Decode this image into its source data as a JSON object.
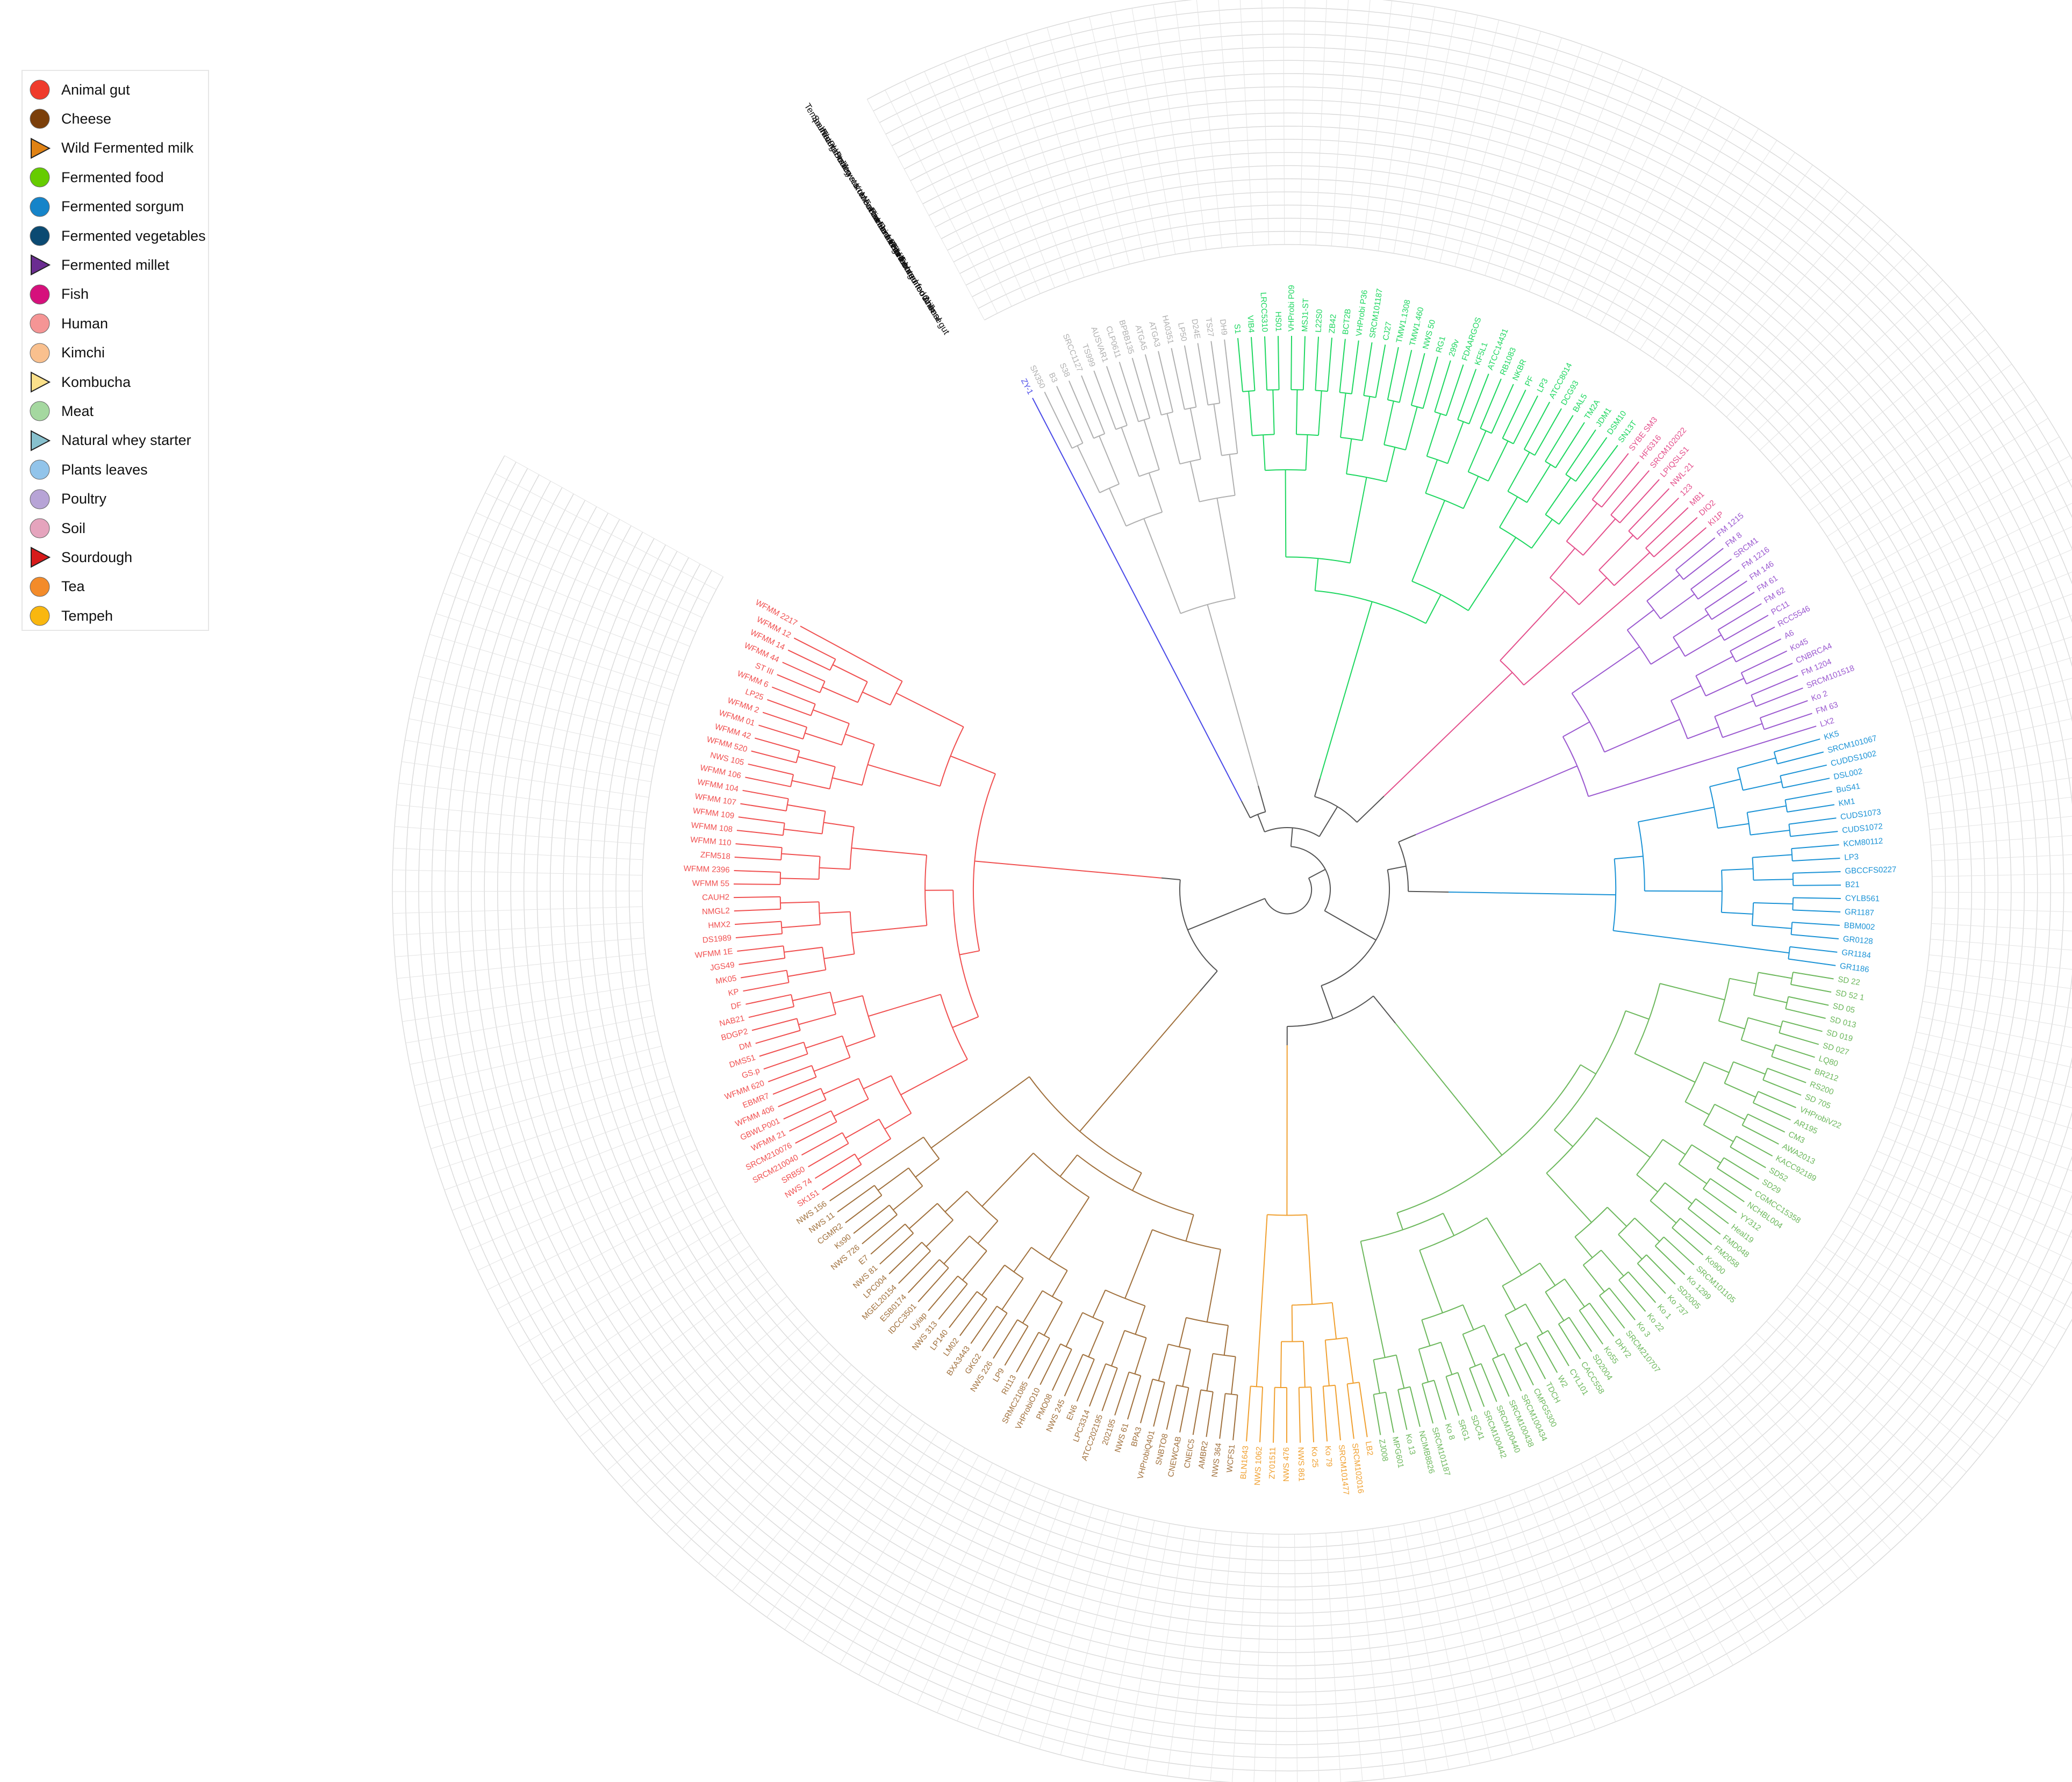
{
  "legend": [
    {
      "label": "Animal gut",
      "color": "#ef3b2c",
      "shape": "circle"
    },
    {
      "label": "Cheese",
      "color": "#7b3f0a",
      "shape": "circle"
    },
    {
      "label": "Wild Fermented milk",
      "color": "#e08214",
      "shape": "triangle"
    },
    {
      "label": "Fermented food",
      "color": "#66cc00",
      "shape": "circle"
    },
    {
      "label": "Fermented sorgum",
      "color": "#1584c9",
      "shape": "circle"
    },
    {
      "label": "Fermented vegetables",
      "color": "#0b4a72",
      "shape": "circle"
    },
    {
      "label": "Fermented millet",
      "color": "#6a2c91",
      "shape": "triangle"
    },
    {
      "label": "Fish",
      "color": "#d6107c",
      "shape": "circle"
    },
    {
      "label": "Human",
      "color": "#f59595",
      "shape": "circle"
    },
    {
      "label": "Kimchi",
      "color": "#f9c08e",
      "shape": "circle"
    },
    {
      "label": "Kombucha",
      "color": "#fbe08a",
      "shape": "triangle"
    },
    {
      "label": "Meat",
      "color": "#a5d8a0",
      "shape": "circle"
    },
    {
      "label": "Natural whey starter",
      "color": "#87c0cd",
      "shape": "triangle"
    },
    {
      "label": "Plants leaves",
      "color": "#92c4ea",
      "shape": "circle"
    },
    {
      "label": "Poultry",
      "color": "#b7a4d6",
      "shape": "circle"
    },
    {
      "label": "Soil",
      "color": "#e5a4bd",
      "shape": "circle"
    },
    {
      "label": "Sourdough",
      "color": "#d71a1a",
      "shape": "triangle"
    },
    {
      "label": "Tea",
      "color": "#f38b2a",
      "shape": "circle"
    },
    {
      "label": "Tempeh",
      "color": "#f9b70f",
      "shape": "circle"
    }
  ],
  "ring_labels": [
    "Animal gut",
    "Cheese",
    "Wild Fermented milk",
    "Fermented food",
    "Fermented sorgum",
    "Fermented vegetables",
    "Fermented millet",
    "Fish",
    "Human",
    "Kimchi",
    "Kombucha",
    "Meat",
    "Natural whey starter",
    "Plants leaves",
    "Poultry",
    "Soil",
    "Sourdough",
    "Tea",
    "Tempeh"
  ],
  "clades": [
    {
      "color": "#4a4ae8",
      "leaves": [
        "ZY-1"
      ]
    },
    {
      "color": "#b0b0b0",
      "leaves": [
        "SN350",
        "B3",
        "S38",
        "SRCC1127",
        "TS999",
        "AUSVAR1",
        "CLP0611",
        "BPBB135",
        "ATGA5",
        "ATGA3",
        "HA0351",
        "LP50",
        "D24E",
        "TS27",
        "DH9"
      ]
    },
    {
      "color": "#1ed760",
      "leaves": [
        "S1",
        "VIB4",
        "LRCC5310",
        "HS01",
        "VHProbi P09",
        "MSJ1-ST",
        "L22S0",
        "ZB42",
        "BCT2B",
        "VHProbi P36",
        "SRCM101187",
        "CJ27",
        "TMW1.1308",
        "TMW1.460",
        "NWS 50",
        "RG1",
        "299v",
        "FDAARGOS",
        "KF5L1",
        "ATCC14431",
        "RB1083",
        "NKBR",
        "PF",
        "LP3",
        "ATCC8014",
        "DCG93",
        "BAL5",
        "TM2A",
        "JDM1",
        "DSM10",
        "SN13T"
      ]
    },
    {
      "color": "#e4508c",
      "leaves": [
        "SYBE SM3",
        "HF6316",
        "SRCM102022",
        "LPIQSLS1",
        "NWL-21",
        "123",
        "MB1",
        "DIO2",
        "KI1P"
      ]
    },
    {
      "color": "#9b59d0",
      "leaves": [
        "FM 1215",
        "FM 8",
        "SRCM1",
        "FM 1216",
        "FM 146",
        "FM 61",
        "FM 62",
        "PC11",
        "RCC5546",
        "A6",
        "Ko45",
        "CNBRCA4",
        "FM 1204",
        "SRCM101518",
        "Ko 2",
        "FM 63",
        "LX2"
      ]
    },
    {
      "color": "#1c93d6",
      "leaves": [
        "KK5",
        "SRCM101067",
        "CUDDS1002",
        "DSL002",
        "BuS41",
        "KM1",
        "CUDS1073",
        "CUDS1072",
        "KCM80112",
        "LP3",
        "GBCCFS0227",
        "B21",
        "CYLB561",
        "GR1187",
        "BBM002",
        "GR0128",
        "GR1184",
        "GR1186"
      ]
    },
    {
      "color": "#6db85d",
      "leaves": [
        "SD 22",
        "SD 52 1",
        "SD 05",
        "SD 013",
        "SD 019",
        "SD 027",
        "LQ80",
        "BR212",
        "RS200",
        "SD 705",
        "VHProbiV22",
        "AR195",
        "CM3",
        "AWA2013",
        "KACC92189",
        "SD52",
        "SD29",
        "CGMCC15358",
        "NCHBL004",
        "YY312",
        "Heal19",
        "FMD048",
        "FM2058",
        "Ko900",
        "SRCM101105",
        "Ko 1299",
        "SD2005",
        "Ko 737",
        "Ko 1",
        "Ko 22",
        "Ko 3",
        "SRCM210707",
        "DHY2",
        "Ko55",
        "SD2004",
        "CACC558",
        "CYL101",
        "W2",
        "TDCH",
        "CMPG5300",
        "SRCM100434",
        "SRCM100438",
        "SRCM100440",
        "SRCM100442",
        "SDC41",
        "SRG1",
        "Ko 8",
        "SRCM101187",
        "NCIMB8826",
        "Ko 13",
        "MPG601",
        "ZJ008"
      ]
    },
    {
      "color": "#f0a030",
      "leaves": [
        "LB2",
        "SRCM102016",
        "SRCM101477",
        "Ko 79",
        "Ko 25",
        "NWS 861",
        "NWS 476",
        "ZY01511",
        "NWS 1062",
        "BLN1643"
      ]
    },
    {
      "color": "#a0703c",
      "leaves": [
        "WCFS1",
        "NWS 364",
        "AMBR2",
        "CNEIC5",
        "CNEWCAB",
        "SNBTO8",
        "VHProbiQ401",
        "BPA3",
        "NWS 61",
        "202195",
        "ATCC202195",
        "LPC3314",
        "EN6",
        "NWS 245",
        "PMO08",
        "VHProbiO10",
        "SRMC21085",
        "RI113",
        "LP9",
        "NWS 226",
        "GKG2",
        "BXA3443",
        "LM02",
        "LP140",
        "NWS 313",
        "Uyiap",
        "IDCC3501",
        "ESB0174",
        "MGEL20154",
        "LPC004",
        "NWS 81",
        "E7",
        "NWS 726",
        "Ks90",
        "CGMR2",
        "NWS 11",
        "NWS 156"
      ]
    },
    {
      "color": "#f05050",
      "leaves": [
        "SK151",
        "NWS 74",
        "SRB50",
        "SRCM210040",
        "SRCM210076",
        "WFMM 21",
        "GBWLP001",
        "WFMM 406",
        "EBMR7",
        "WFMM 620",
        "GS.p",
        "DMS51",
        "DM",
        "BDGP2",
        "NAB21",
        "DF",
        "KP",
        "MK05",
        "JGS49",
        "WFMM 1E",
        "DS1989",
        "HMX2",
        "NMGL2",
        "CAUH2",
        "WFMM 55",
        "WFMM 2396",
        "ZFM518",
        "WFMM 110",
        "WFMM 108",
        "WFMM 109",
        "WFMM 107",
        "WFMM 104",
        "WFMM 106",
        "NWS 105",
        "WFMM 520",
        "WFMM 42",
        "WFMM 01",
        "WFMM 2",
        "LP25",
        "WFMM 6",
        "ST III",
        "WFMM 44",
        "WFMM 14",
        "WFMM 12",
        "WFMM 2217"
      ]
    }
  ]
}
